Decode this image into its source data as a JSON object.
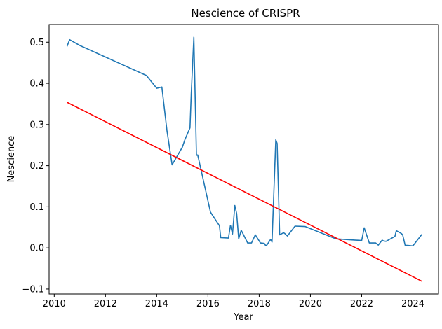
{
  "chart_data": {
    "type": "line",
    "title": "Nescience of CRISPR",
    "xlabel": "Year",
    "ylabel": "Nescience",
    "xlim": [
      2009.8,
      2025.0
    ],
    "ylim": [
      -0.112,
      0.543
    ],
    "grid": false,
    "x_ticks": [
      2010,
      2012,
      2014,
      2016,
      2018,
      2020,
      2022,
      2024
    ],
    "x_tick_labels": [
      "2010",
      "2012",
      "2014",
      "2016",
      "2018",
      "2020",
      "2022",
      "2024"
    ],
    "y_ticks": [
      -0.1,
      0.0,
      0.1,
      0.2,
      0.3,
      0.4,
      0.5
    ],
    "y_tick_labels": [
      "−0.1",
      "0.0",
      "0.1",
      "0.2",
      "0.3",
      "0.4",
      "0.5"
    ],
    "series": [
      {
        "color": "#1f77b4",
        "x": [
          2010.5,
          2010.6,
          2011.0,
          2013.6,
          2014.0,
          2014.2,
          2014.4,
          2014.6,
          2015.0,
          2015.1,
          2015.3,
          2015.35,
          2015.45,
          2015.55,
          2015.6,
          2016.1,
          2016.45,
          2016.5,
          2016.8,
          2016.88,
          2016.96,
          2017.05,
          2017.12,
          2017.2,
          2017.3,
          2017.55,
          2017.62,
          2017.7,
          2017.85,
          2018.05,
          2018.2,
          2018.25,
          2018.3,
          2018.45,
          2018.5,
          2018.65,
          2018.7,
          2018.8,
          2018.95,
          2019.0,
          2019.1,
          2019.4,
          2019.8,
          2021.0,
          2022.0,
          2022.1,
          2022.3,
          2022.55,
          2022.65,
          2022.8,
          2022.85,
          2022.95,
          2023.3,
          2023.35,
          2023.55,
          2023.6,
          2023.7,
          2023.8,
          2023.95,
          2024.0,
          2024.35
        ],
        "y": [
          0.49,
          0.506,
          0.492,
          0.419,
          0.388,
          0.391,
          0.285,
          0.202,
          0.245,
          0.263,
          0.292,
          0.375,
          0.512,
          0.225,
          0.226,
          0.087,
          0.054,
          0.025,
          0.024,
          0.055,
          0.034,
          0.103,
          0.084,
          0.022,
          0.043,
          0.012,
          0.012,
          0.012,
          0.032,
          0.012,
          0.011,
          0.006,
          0.007,
          0.021,
          0.014,
          0.263,
          0.254,
          0.032,
          0.037,
          0.035,
          0.029,
          0.053,
          0.052,
          0.022,
          0.018,
          0.049,
          0.012,
          0.012,
          0.007,
          0.019,
          0.017,
          0.016,
          0.028,
          0.042,
          0.035,
          0.032,
          0.006,
          0.006,
          0.005,
          0.005,
          0.033
        ]
      },
      {
        "color": "#ff0000",
        "x": [
          2010.5,
          2024.35
        ],
        "y": [
          0.354,
          -0.081
        ]
      }
    ]
  }
}
